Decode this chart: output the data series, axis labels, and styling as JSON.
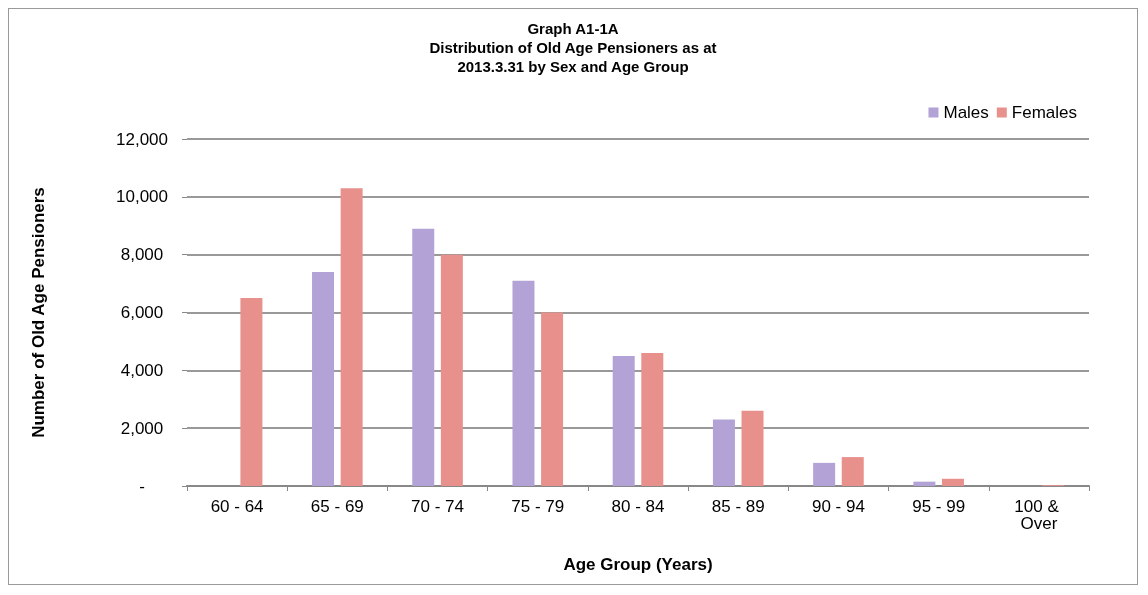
{
  "chart_data": {
    "type": "bar",
    "title": "Graph A1-1A\nDistribution of Old Age Pensioners as at\n2013.3.31 by Sex and Age Group",
    "xlabel": "Age Group (Years)",
    "ylabel": "Number of Old Age Pensioners",
    "categories": [
      "60 - 64",
      "65 - 69",
      "70 - 74",
      "75 - 79",
      "80 - 84",
      "85 - 89",
      "90 - 94",
      "95 - 99",
      "100 & Over"
    ],
    "series": [
      {
        "name": "Males",
        "color": "#b3a2d6",
        "values": [
          0,
          7400,
          8900,
          7100,
          4500,
          2300,
          800,
          150,
          0
        ]
      },
      {
        "name": "Females",
        "color": "#e8918c",
        "values": [
          6500,
          10300,
          8000,
          6000,
          4600,
          2600,
          1000,
          250,
          30
        ]
      }
    ],
    "ylim": [
      0,
      12000
    ],
    "yticks": [
      {
        "value": 0,
        "label": "-"
      },
      {
        "value": 2000,
        "label": "2,000"
      },
      {
        "value": 4000,
        "label": "4,000"
      },
      {
        "value": 6000,
        "label": "6,000"
      },
      {
        "value": 8000,
        "label": "8,000"
      },
      {
        "value": 10000,
        "label": "10,000"
      },
      {
        "value": 12000,
        "label": "12,000"
      }
    ],
    "grid": "y",
    "legend": "top right"
  }
}
